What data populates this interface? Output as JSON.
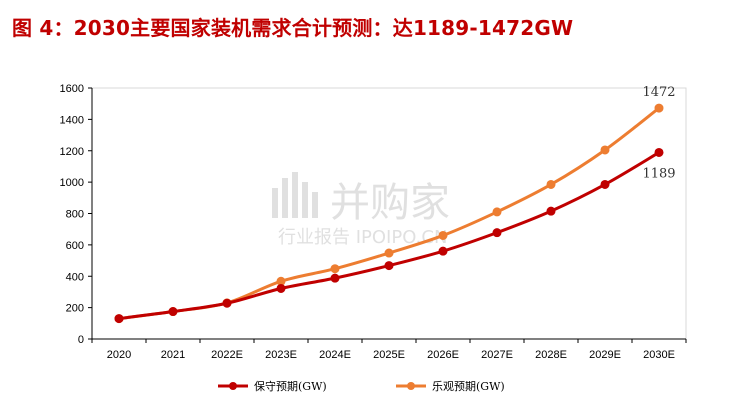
{
  "title": "图 4：2030主要国家装机需求合计预测：达1189-1472GW",
  "watermark": {
    "logo_text": "并购家",
    "sub_text": "行业报告 IPOIPO.CN"
  },
  "chart_data": {
    "type": "line",
    "title": "图 4：2030主要国家装机需求合计预测：达1189-1472GW",
    "xlabel": "",
    "ylabel": "",
    "categories": [
      "2020",
      "2021",
      "2022E",
      "2023E",
      "2024E",
      "2025E",
      "2026E",
      "2027E",
      "2028E",
      "2029E",
      "2030E"
    ],
    "ylim": [
      0,
      1600
    ],
    "yticks": [
      0,
      200,
      400,
      600,
      800,
      1000,
      1200,
      1400,
      1600
    ],
    "grid": false,
    "legend": "bottom",
    "series": [
      {
        "name": "保守预期(GW)",
        "color": "#c00000",
        "values": [
          130,
          175,
          228,
          322,
          388,
          468,
          560,
          678,
          815,
          985,
          1189
        ]
      },
      {
        "name": "乐观预期(GW)",
        "color": "#ed7d31",
        "values": [
          130,
          175,
          230,
          368,
          448,
          548,
          660,
          810,
          985,
          1205,
          1472
        ]
      }
    ],
    "annotations": [
      {
        "series": 1,
        "index": 10,
        "text": "1472"
      },
      {
        "series": 0,
        "index": 10,
        "text": "1189"
      }
    ]
  }
}
